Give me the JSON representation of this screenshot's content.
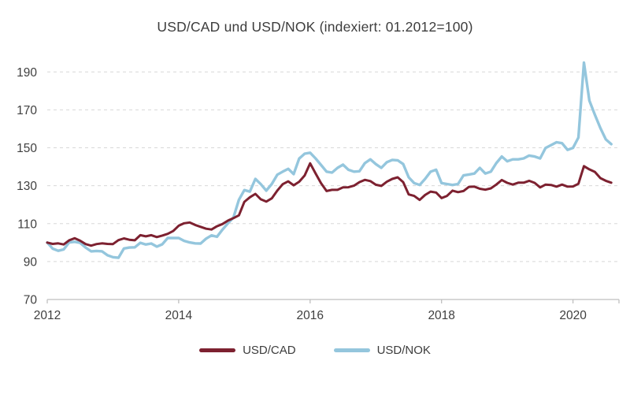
{
  "title": "USD/CAD und USD/NOK (indexiert: 01.2012=100)",
  "colors": {
    "text": "#3f3f3f",
    "grid": "#d8d8d8",
    "axis": "#bfbfbf",
    "usd_cad": "#7d2130",
    "usd_nok": "#94c6dd"
  },
  "chart_data": {
    "type": "line",
    "title": "USD/CAD und USD/NOK (indexiert: 01.2012=100)",
    "xlabel": "",
    "ylabel": "",
    "xlim": [
      2012,
      2020.7
    ],
    "ylim": [
      70,
      198
    ],
    "xticks": [
      2012,
      2014,
      2016,
      2018,
      2020
    ],
    "yticks": [
      70,
      90,
      110,
      130,
      150,
      170,
      190
    ],
    "grid": "horizontal-dashed",
    "legend_position": "bottom",
    "x": [
      2012.0,
      2012.083,
      2012.167,
      2012.25,
      2012.333,
      2012.417,
      2012.5,
      2012.583,
      2012.667,
      2012.75,
      2012.833,
      2012.917,
      2013.0,
      2013.083,
      2013.167,
      2013.25,
      2013.333,
      2013.417,
      2013.5,
      2013.583,
      2013.667,
      2013.75,
      2013.833,
      2013.917,
      2014.0,
      2014.083,
      2014.167,
      2014.25,
      2014.333,
      2014.417,
      2014.5,
      2014.583,
      2014.667,
      2014.75,
      2014.833,
      2014.917,
      2015.0,
      2015.083,
      2015.167,
      2015.25,
      2015.333,
      2015.417,
      2015.5,
      2015.583,
      2015.667,
      2015.75,
      2015.833,
      2015.917,
      2016.0,
      2016.083,
      2016.167,
      2016.25,
      2016.333,
      2016.417,
      2016.5,
      2016.583,
      2016.667,
      2016.75,
      2016.833,
      2016.917,
      2017.0,
      2017.083,
      2017.167,
      2017.25,
      2017.333,
      2017.417,
      2017.5,
      2017.583,
      2017.667,
      2017.75,
      2017.833,
      2017.917,
      2018.0,
      2018.083,
      2018.167,
      2018.25,
      2018.333,
      2018.417,
      2018.5,
      2018.583,
      2018.667,
      2018.75,
      2018.833,
      2018.917,
      2019.0,
      2019.083,
      2019.167,
      2019.25,
      2019.333,
      2019.417,
      2019.5,
      2019.583,
      2019.667,
      2019.75,
      2019.833,
      2019.917,
      2020.0,
      2020.083,
      2020.167,
      2020.25,
      2020.333,
      2020.417,
      2020.5,
      2020.583
    ],
    "series": [
      {
        "name": "USD/CAD",
        "color": "#7d2130",
        "values": [
          100,
          99.3,
          99.6,
          99,
          101.2,
          102.3,
          101,
          99.2,
          98.4,
          99.2,
          99.6,
          99.3,
          99.2,
          101.3,
          102.2,
          101.5,
          101.2,
          103.9,
          103.3,
          103.9,
          102.9,
          103.7,
          104.6,
          106.1,
          108.9,
          110.2,
          110.6,
          109.3,
          108.3,
          107.3,
          106.9,
          108.6,
          109.8,
          111.6,
          112.9,
          114.4,
          121.5,
          123.9,
          125.7,
          122.8,
          121.6,
          123.3,
          127.4,
          130.8,
          132.3,
          130.2,
          132.1,
          135.4,
          141.8,
          136.5,
          131.3,
          127.2,
          127.8,
          127.8,
          129.1,
          129.2,
          130,
          131.9,
          133.1,
          132.4,
          130.5,
          129.9,
          132.1,
          133.6,
          134.4,
          131.9,
          125.4,
          124.6,
          122.5,
          125.1,
          126.9,
          126.4,
          123.5,
          124.6,
          127.4,
          126.6,
          127.2,
          129.4,
          129.5,
          128.4,
          127.9,
          128.6,
          130.6,
          133,
          131.5,
          130.6,
          131.6,
          131.6,
          132.6,
          131.5,
          129.1,
          130.6,
          130.4,
          129.5,
          130.6,
          129.5,
          129.6,
          131,
          140.3,
          138.6,
          137.3,
          134,
          132.6,
          131.6
        ]
      },
      {
        "name": "USD/NOK",
        "color": "#94c6dd",
        "values": [
          100,
          96.8,
          95.7,
          96.4,
          100.1,
          100.4,
          99.9,
          97.4,
          95.4,
          95.6,
          95.4,
          93.3,
          92.3,
          92,
          96.9,
          97.4,
          97.5,
          99.9,
          99,
          99.5,
          97.9,
          99.1,
          102.4,
          102.4,
          102.4,
          100.9,
          100.1,
          99.6,
          99.5,
          102.1,
          103.8,
          103.1,
          106.9,
          110.2,
          113.2,
          122.6,
          127.7,
          126.9,
          133.6,
          130.8,
          127.4,
          130.9,
          135.8,
          137.4,
          138.9,
          136.1,
          144.3,
          146.9,
          147.4,
          144.4,
          140.9,
          137.4,
          136.9,
          139.4,
          141.1,
          138.4,
          137.4,
          137.6,
          141.9,
          143.9,
          141.4,
          139.4,
          142.4,
          143.6,
          143.4,
          141.4,
          134.4,
          131.4,
          130.4,
          133.6,
          137.4,
          138.4,
          131.4,
          130.9,
          130.4,
          130.9,
          135.4,
          135.9,
          136.4,
          139.4,
          136.4,
          137.4,
          141.9,
          145.4,
          142.9,
          143.9,
          143.9,
          144.4,
          145.9,
          145.4,
          144.4,
          149.9,
          151.4,
          152.9,
          152.4,
          148.9,
          149.9,
          155.4,
          194.9,
          174.9,
          167.4,
          160.4,
          154.4,
          151.9
        ]
      }
    ]
  }
}
